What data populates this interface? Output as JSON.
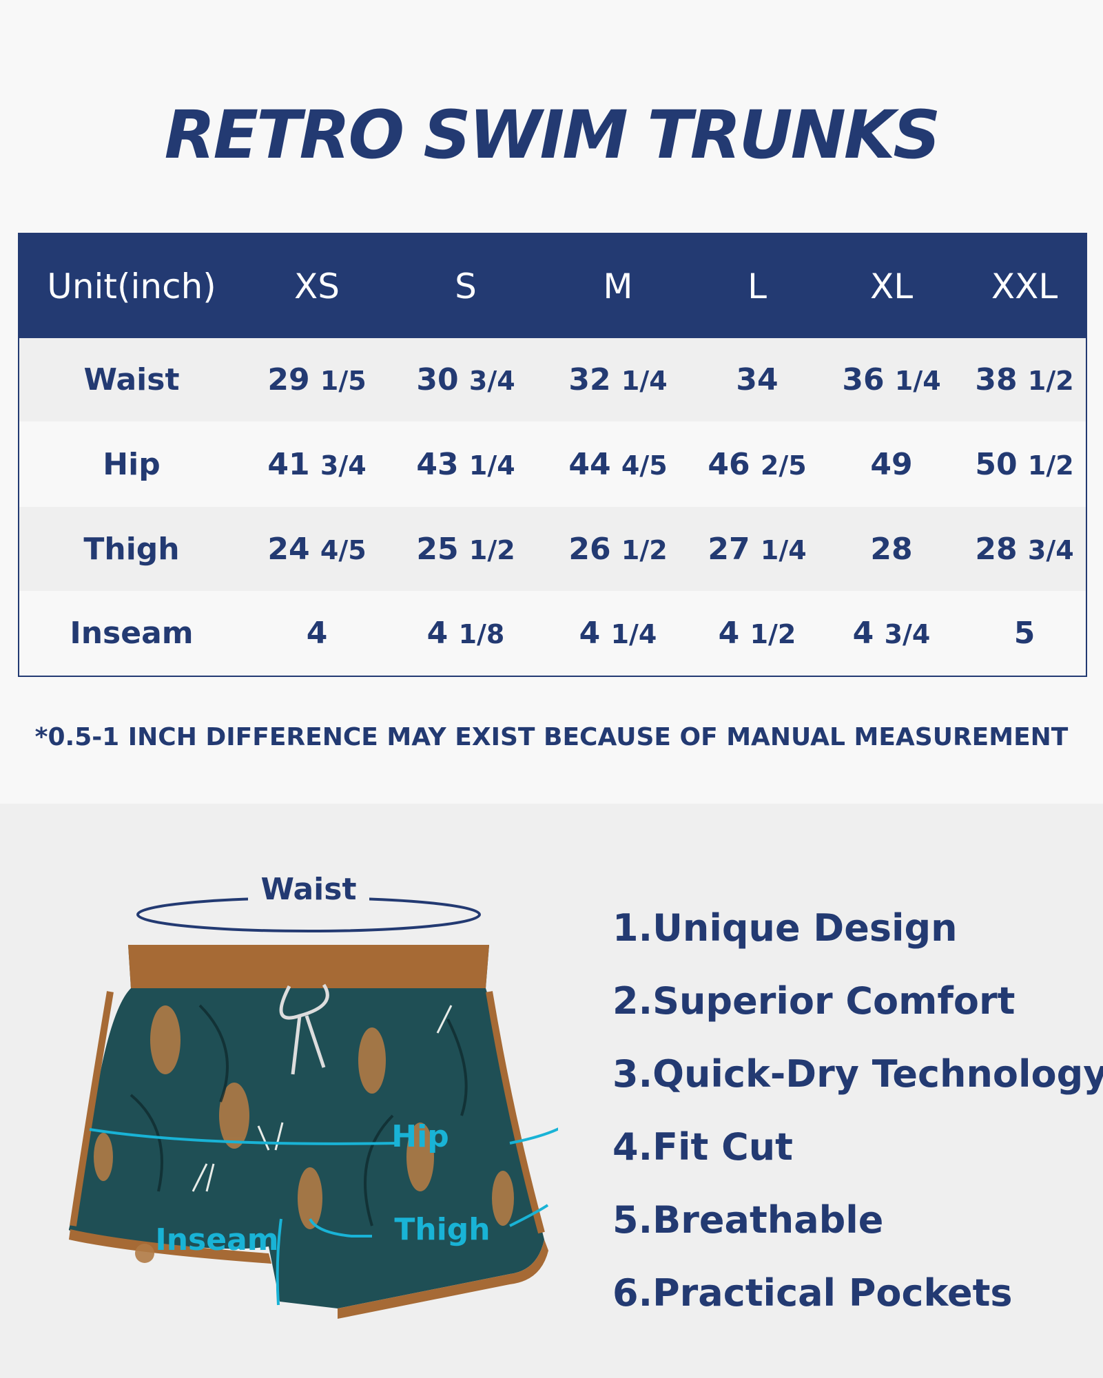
{
  "title": "RETRO SWIM TRUNKS",
  "table": {
    "headers": [
      "Unit(inch)",
      "XS",
      "S",
      "M",
      "L",
      "XL",
      "XXL"
    ],
    "rows": [
      {
        "label": "Waist",
        "values": [
          [
            "29",
            "1/5"
          ],
          [
            "30",
            "3/4"
          ],
          [
            "32",
            "1/4"
          ],
          [
            "34",
            ""
          ],
          [
            "36",
            "1/4"
          ],
          [
            "38",
            "1/2"
          ]
        ]
      },
      {
        "label": "Hip",
        "values": [
          [
            "41",
            "3/4"
          ],
          [
            "43",
            "1/4"
          ],
          [
            "44",
            "4/5"
          ],
          [
            "46",
            "2/5"
          ],
          [
            "49",
            ""
          ],
          [
            "50",
            "1/2"
          ]
        ]
      },
      {
        "label": "Thigh",
        "values": [
          [
            "24",
            "4/5"
          ],
          [
            "25",
            "1/2"
          ],
          [
            "26",
            "1/2"
          ],
          [
            "27",
            "1/4"
          ],
          [
            "28",
            ""
          ],
          [
            "28",
            "3/4"
          ]
        ]
      },
      {
        "label": "Inseam",
        "values": [
          [
            "4",
            ""
          ],
          [
            "4",
            "1/8"
          ],
          [
            "4",
            "1/4"
          ],
          [
            "4",
            "1/2"
          ],
          [
            "4",
            "3/4"
          ],
          [
            "5",
            ""
          ]
        ]
      }
    ]
  },
  "note": "*0.5-1 INCH DIFFERENCE MAY EXIST BECAUSE OF MANUAL MEASUREMENT",
  "diagram": {
    "waist": "Waist",
    "hip": "Hip",
    "thigh": "Thigh",
    "inseam": "Inseam"
  },
  "features": [
    "1.Unique Design",
    "2.Superior Comfort",
    "3.Quick-Dry Technology",
    "4.Fit Cut",
    "5.Breathable",
    "6.Practical Pockets"
  ],
  "colors": {
    "navy": "#233a72",
    "measure": "#19b3d6",
    "fabric": "#1f4f55",
    "trim": "#a66a35"
  }
}
